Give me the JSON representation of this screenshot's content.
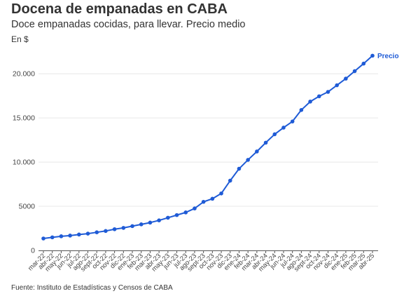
{
  "header": {
    "title": "Docena de empanadas en CABA",
    "subtitle": "Doce empanadas cocidas, para llevar. Precio medio",
    "units": "En $"
  },
  "footer": {
    "source": "Fuente: Instituto de Estadísticas y Censos de CABA"
  },
  "colors": {
    "line": "#1f5bd6",
    "grid": "#e8e8e8",
    "axis": "#555555"
  },
  "chart_data": {
    "type": "line",
    "title": "Docena de empanadas en CABA",
    "subtitle": "Doce empanadas cocidas, para llevar. Precio medio",
    "ylabel": "En $",
    "xlabel": "",
    "ylim": [
      0,
      22000
    ],
    "yticks": [
      0,
      5000,
      10000,
      15000,
      20000
    ],
    "ytick_labels": [
      "0",
      "5000",
      "10.000",
      "15.000",
      "20.000"
    ],
    "grid": true,
    "legend": "end-of-line label",
    "categories": [
      "mar-22",
      "abr-22",
      "may-22",
      "jun-22",
      "jul-22",
      "ago-22",
      "sept-22",
      "oct-22",
      "nov-22",
      "dic-22",
      "ene-23",
      "feb-23",
      "mar-23",
      "abr-23",
      "may-23",
      "jun-23",
      "jul-23",
      "ago-23",
      "sept-23",
      "oct-23",
      "nov-23",
      "dic-23",
      "ene-24",
      "feb-24",
      "mar-24",
      "abr-24",
      "may-24",
      "jun-24",
      "jul-24",
      "ago-24",
      "sept-24",
      "oct-24",
      "nov-24",
      "dic-24",
      "ene-25",
      "feb-25",
      "mar-25",
      "abr-25"
    ],
    "series": [
      {
        "name": "Precio",
        "values": [
          1350,
          1480,
          1600,
          1680,
          1800,
          1900,
          2050,
          2200,
          2400,
          2550,
          2750,
          2950,
          3150,
          3400,
          3700,
          4000,
          4300,
          4750,
          5500,
          5850,
          6450,
          7900,
          9250,
          10250,
          11200,
          12200,
          13150,
          13900,
          14600,
          15900,
          16850,
          17450,
          17950,
          18700,
          19450,
          20300,
          21150,
          22050
        ]
      }
    ]
  }
}
